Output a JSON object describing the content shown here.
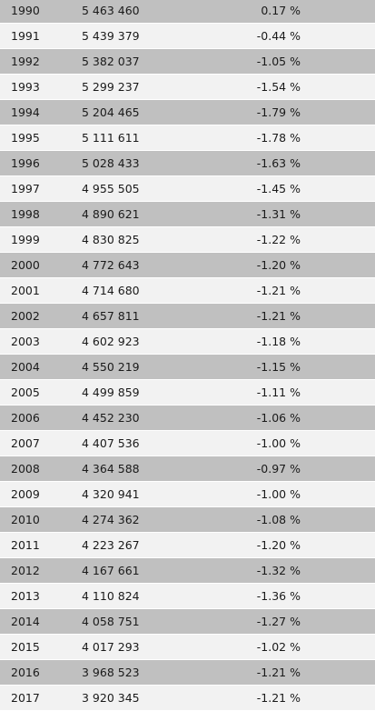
{
  "table": {
    "rows": [
      {
        "year": "1990",
        "population": "5 463 460",
        "change": "0.17 %"
      },
      {
        "year": "1991",
        "population": "5 439 379",
        "change": "-0.44 %"
      },
      {
        "year": "1992",
        "population": "5 382 037",
        "change": "-1.05 %"
      },
      {
        "year": "1993",
        "population": "5 299 237",
        "change": "-1.54 %"
      },
      {
        "year": "1994",
        "population": "5 204 465",
        "change": "-1.79 %"
      },
      {
        "year": "1995",
        "population": "5 111 611",
        "change": "-1.78 %"
      },
      {
        "year": "1996",
        "population": "5 028 433",
        "change": "-1.63 %"
      },
      {
        "year": "1997",
        "population": "4 955 505",
        "change": "-1.45 %"
      },
      {
        "year": "1998",
        "population": "4 890 621",
        "change": "-1.31 %"
      },
      {
        "year": "1999",
        "population": "4 830 825",
        "change": "-1.22 %"
      },
      {
        "year": "2000",
        "population": "4 772 643",
        "change": "-1.20 %"
      },
      {
        "year": "2001",
        "population": "4 714 680",
        "change": "-1.21 %"
      },
      {
        "year": "2002",
        "population": "4 657 811",
        "change": "-1.21 %"
      },
      {
        "year": "2003",
        "population": "4 602 923",
        "change": "-1.18 %"
      },
      {
        "year": "2004",
        "population": "4 550 219",
        "change": "-1.15 %"
      },
      {
        "year": "2005",
        "population": "4 499 859",
        "change": "-1.11 %"
      },
      {
        "year": "2006",
        "population": "4 452 230",
        "change": "-1.06 %"
      },
      {
        "year": "2007",
        "population": "4 407 536",
        "change": "-1.00 %"
      },
      {
        "year": "2008",
        "population": "4 364 588",
        "change": "-0.97 %"
      },
      {
        "year": "2009",
        "population": "4 320 941",
        "change": "-1.00 %"
      },
      {
        "year": "2010",
        "population": "4 274 362",
        "change": "-1.08 %"
      },
      {
        "year": "2011",
        "population": "4 223 267",
        "change": "-1.20 %"
      },
      {
        "year": "2012",
        "population": "4 167 661",
        "change": "-1.32 %"
      },
      {
        "year": "2013",
        "population": "4 110 824",
        "change": "-1.36 %"
      },
      {
        "year": "2014",
        "population": "4 058 751",
        "change": "-1.27 %"
      },
      {
        "year": "2015",
        "population": "4 017 293",
        "change": "-1.02 %"
      },
      {
        "year": "2016",
        "population": "3 968 523",
        "change": "-1.21 %"
      },
      {
        "year": "2017",
        "population": "3 920 345",
        "change": "-1.21 %"
      }
    ]
  }
}
